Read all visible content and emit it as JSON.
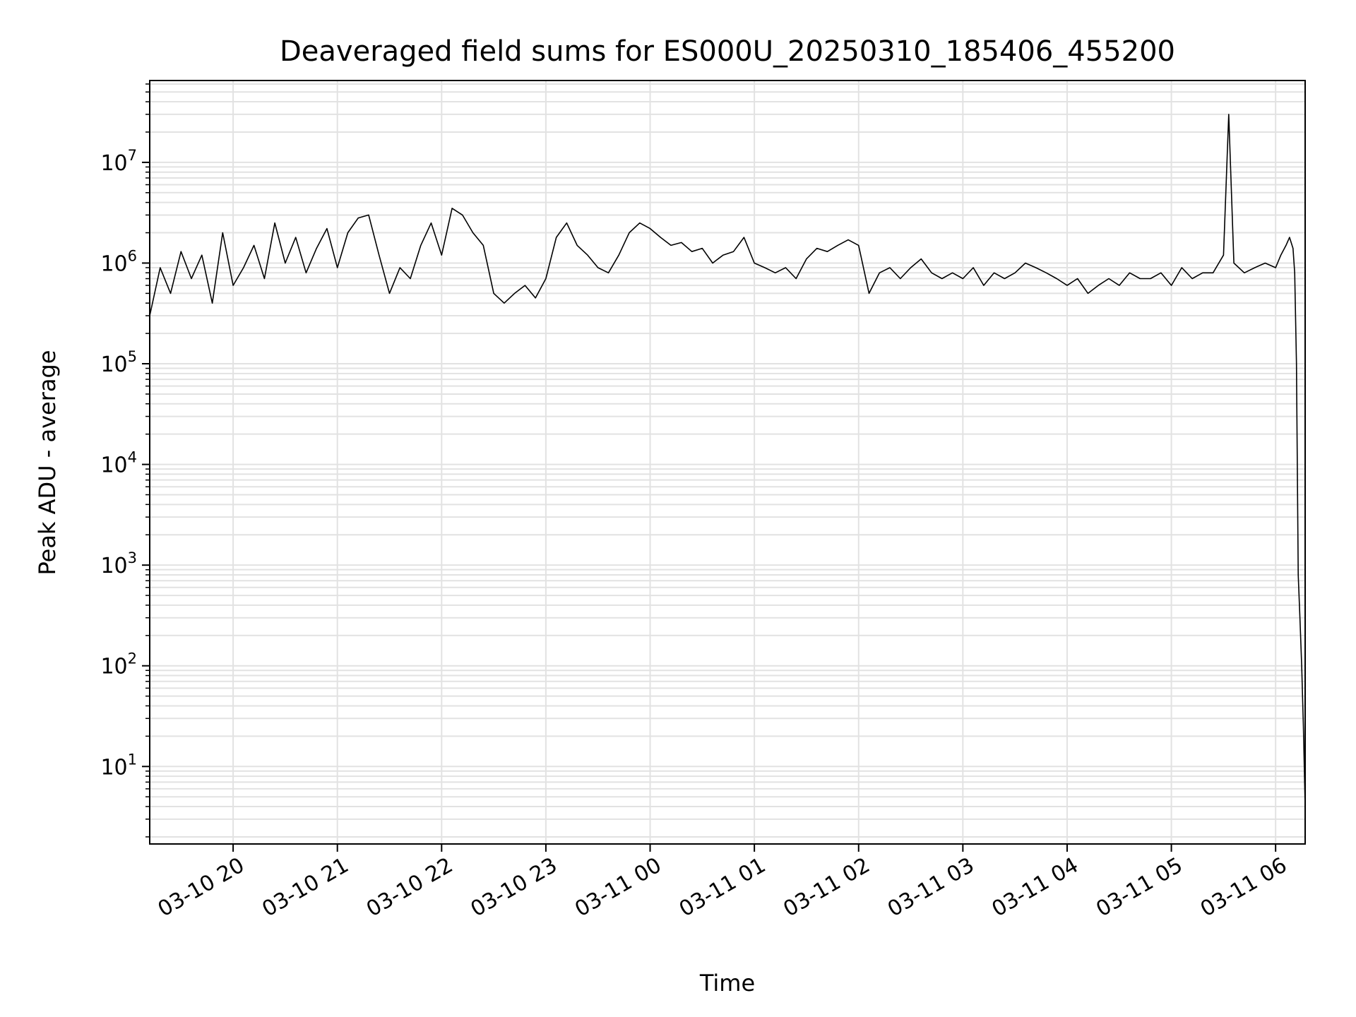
{
  "chart_data": {
    "type": "line",
    "title": "Deaveraged field sums for ES000U_20250310_185406_455200",
    "xlabel": "Time",
    "ylabel": "Peak ADU - average",
    "yscale": "log",
    "ylim": [
      1.7,
      65000000
    ],
    "xlim": [
      "03-10 19:12",
      "03-11 06:17"
    ],
    "grid": true,
    "x_ticks": [
      "03-10 20",
      "03-10 21",
      "03-10 22",
      "03-10 23",
      "03-11 00",
      "03-11 01",
      "03-11 02",
      "03-11 03",
      "03-11 04",
      "03-11 05",
      "03-11 06"
    ],
    "y_ticks": [
      {
        "base": "10",
        "exp": "1",
        "value": 10
      },
      {
        "base": "10",
        "exp": "2",
        "value": 100
      },
      {
        "base": "10",
        "exp": "3",
        "value": 1000
      },
      {
        "base": "10",
        "exp": "4",
        "value": 10000
      },
      {
        "base": "10",
        "exp": "5",
        "value": 100000
      },
      {
        "base": "10",
        "exp": "6",
        "value": 1000000
      },
      {
        "base": "10",
        "exp": "7",
        "value": 10000000
      }
    ],
    "series": [
      {
        "color": "#000000",
        "x": [
          "03-10 19:12",
          "03-10 19:18",
          "03-10 19:24",
          "03-10 19:30",
          "03-10 19:36",
          "03-10 19:42",
          "03-10 19:48",
          "03-10 19:54",
          "03-10 20:00",
          "03-10 20:06",
          "03-10 20:12",
          "03-10 20:18",
          "03-10 20:24",
          "03-10 20:30",
          "03-10 20:36",
          "03-10 20:42",
          "03-10 20:48",
          "03-10 20:54",
          "03-10 21:00",
          "03-10 21:06",
          "03-10 21:12",
          "03-10 21:18",
          "03-10 21:24",
          "03-10 21:30",
          "03-10 21:36",
          "03-10 21:42",
          "03-10 21:48",
          "03-10 21:54",
          "03-10 22:00",
          "03-10 22:06",
          "03-10 22:12",
          "03-10 22:18",
          "03-10 22:24",
          "03-10 22:30",
          "03-10 22:36",
          "03-10 22:42",
          "03-10 22:48",
          "03-10 22:54",
          "03-10 23:00",
          "03-10 23:06",
          "03-10 23:12",
          "03-10 23:18",
          "03-10 23:24",
          "03-10 23:30",
          "03-10 23:36",
          "03-10 23:42",
          "03-10 23:48",
          "03-10 23:54",
          "03-11 00:00",
          "03-11 00:06",
          "03-11 00:12",
          "03-11 00:18",
          "03-11 00:24",
          "03-11 00:30",
          "03-11 00:36",
          "03-11 00:42",
          "03-11 00:48",
          "03-11 00:54",
          "03-11 01:00",
          "03-11 01:06",
          "03-11 01:12",
          "03-11 01:18",
          "03-11 01:24",
          "03-11 01:30",
          "03-11 01:36",
          "03-11 01:42",
          "03-11 01:48",
          "03-11 01:54",
          "03-11 02:00",
          "03-11 02:06",
          "03-11 02:12",
          "03-11 02:18",
          "03-11 02:24",
          "03-11 02:30",
          "03-11 02:36",
          "03-11 02:42",
          "03-11 02:48",
          "03-11 02:54",
          "03-11 03:00",
          "03-11 03:06",
          "03-11 03:12",
          "03-11 03:18",
          "03-11 03:24",
          "03-11 03:30",
          "03-11 03:36",
          "03-11 03:42",
          "03-11 03:48",
          "03-11 03:54",
          "03-11 04:00",
          "03-11 04:06",
          "03-11 04:12",
          "03-11 04:18",
          "03-11 04:24",
          "03-11 04:30",
          "03-11 04:36",
          "03-11 04:42",
          "03-11 04:48",
          "03-11 04:54",
          "03-11 05:00",
          "03-11 05:06",
          "03-11 05:12",
          "03-11 05:18",
          "03-11 05:24",
          "03-11 05:30",
          "03-11 05:33",
          "03-11 05:36",
          "03-11 05:42",
          "03-11 05:48",
          "03-11 05:54",
          "03-11 06:00",
          "03-11 06:03",
          "03-11 06:06",
          "03-11 06:08",
          "03-11 06:10",
          "03-11 06:11",
          "03-11 06:12",
          "03-11 06:13",
          "03-11 06:14",
          "03-11 06:15",
          "03-11 06:16",
          "03-11 06:17"
        ],
        "y": [
          300000,
          900000,
          500000,
          1300000,
          700000,
          1200000,
          400000,
          2000000,
          600000,
          900000,
          1500000,
          700000,
          2500000,
          1000000,
          1800000,
          800000,
          1400000,
          2200000,
          900000,
          2000000,
          2800000,
          3000000,
          1200000,
          500000,
          900000,
          700000,
          1500000,
          2500000,
          1200000,
          3500000,
          3000000,
          2000000,
          1500000,
          500000,
          400000,
          500000,
          600000,
          450000,
          700000,
          1800000,
          2500000,
          1500000,
          1200000,
          900000,
          800000,
          1200000,
          2000000,
          2500000,
          2200000,
          1800000,
          1500000,
          1600000,
          1300000,
          1400000,
          1000000,
          1200000,
          1300000,
          1800000,
          1000000,
          900000,
          800000,
          900000,
          700000,
          1100000,
          1400000,
          1300000,
          1500000,
          1700000,
          1500000,
          500000,
          800000,
          900000,
          700000,
          900000,
          1100000,
          800000,
          700000,
          800000,
          700000,
          900000,
          600000,
          800000,
          700000,
          800000,
          1000000,
          900000,
          800000,
          700000,
          600000,
          700000,
          500000,
          600000,
          700000,
          600000,
          800000,
          700000,
          700000,
          800000,
          600000,
          900000,
          700000,
          800000,
          800000,
          1200000,
          30000000,
          1000000,
          800000,
          900000,
          1000000,
          900000,
          1200000,
          1500000,
          1800000,
          1400000,
          800000,
          100000,
          800,
          300,
          100,
          25,
          4
        ]
      }
    ]
  }
}
